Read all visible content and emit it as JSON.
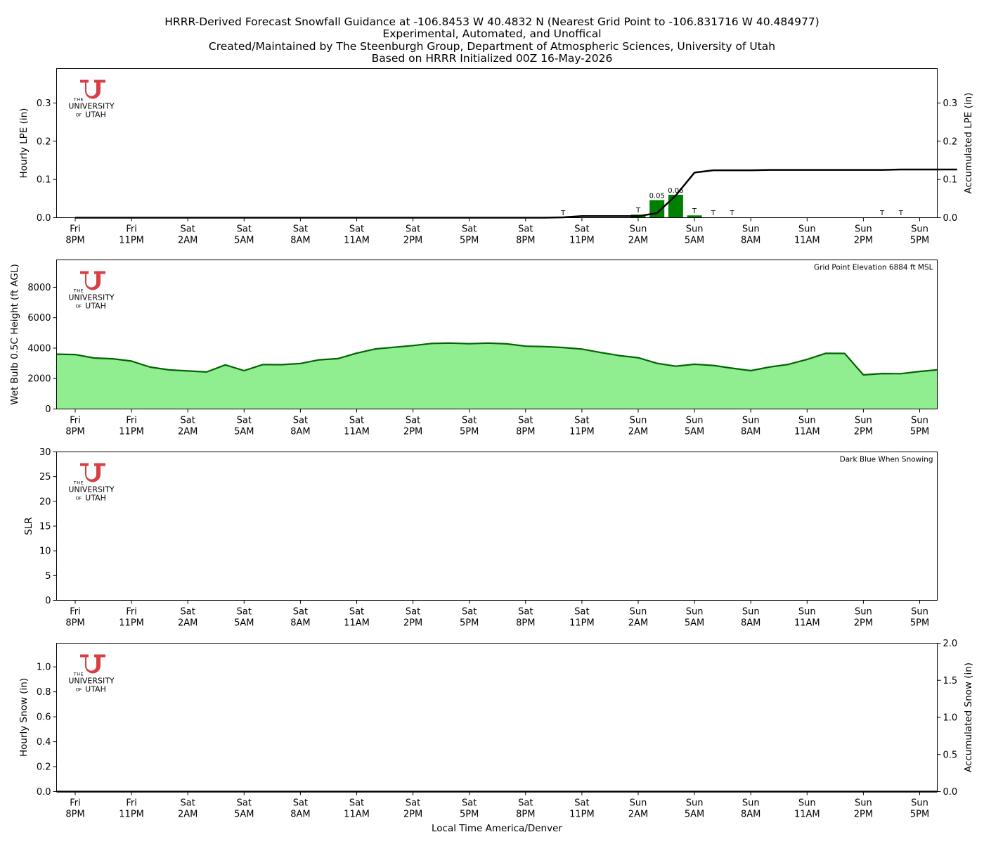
{
  "title_lines": [
    "HRRR-Derived Forecast Snowfall Guidance at -106.8453 W 40.4832 N (Nearest Grid Point to -106.831716 W 40.484977)",
    "Experimental, Automated, and Unoffical",
    "Created/Maintained by The Steenburgh Group, Department of Atmospheric Sciences, University of Utah",
    "Based on HRRR Initialized 00Z 16-May-2026"
  ],
  "x_axis": {
    "label": "Local Time America/Denver",
    "tick_days": [
      "Fri",
      "Fri",
      "Sat",
      "Sat",
      "Sat",
      "Sat",
      "Sat",
      "Sat",
      "Sat",
      "Sat",
      "Sun",
      "Sun",
      "Sun",
      "Sun",
      "Sun",
      "Sun"
    ],
    "tick_times": [
      "8PM",
      "11PM",
      "2AM",
      "5AM",
      "8AM",
      "11AM",
      "2PM",
      "5PM",
      "8PM",
      "11PM",
      "2AM",
      "5AM",
      "8AM",
      "11AM",
      "2PM",
      "5PM"
    ]
  },
  "logo": {
    "the": "THE",
    "university": "UNIVERSITY",
    "of": "OF",
    "utah": "UTAH",
    "color": "#d64045"
  },
  "colors": {
    "bar": "#008000",
    "line": "#000000",
    "area_fill": "#90ee90",
    "area_line": "#006400"
  },
  "chart_data": [
    {
      "type": "bar",
      "ylabel": "Hourly LPE (in)",
      "ylabel_right": "Accumulated LPE (in)",
      "ylim": [
        0,
        0.39
      ],
      "yticks": [
        "0.0",
        "0.1",
        "0.2",
        "0.3"
      ],
      "ylim_right": [
        0,
        0.39
      ],
      "yticks_right": [
        "0.0",
        "0.1",
        "0.2",
        "0.3"
      ],
      "x_hours_from_start": [
        26,
        30,
        31,
        32,
        33,
        34,
        35,
        43,
        44
      ],
      "hourly_lpe": [
        0.001,
        0.008,
        0.046,
        0.06,
        0.006,
        0.001,
        0.001,
        0.001,
        0.001
      ],
      "bar_labels": [
        "T",
        "T",
        "0.05",
        "0.06",
        "T",
        "T",
        "T",
        "T",
        "T"
      ],
      "accumulated_lpe": [
        [
          0,
          0
        ],
        [
          25,
          0
        ],
        [
          26,
          0.001
        ],
        [
          27,
          0.004
        ],
        [
          30,
          0.004
        ],
        [
          31,
          0.012
        ],
        [
          32,
          0.058
        ],
        [
          33,
          0.118
        ],
        [
          34,
          0.124
        ],
        [
          36,
          0.124
        ],
        [
          37,
          0.125
        ],
        [
          43,
          0.125
        ],
        [
          44,
          0.126
        ],
        [
          47,
          0.126
        ]
      ]
    },
    {
      "type": "area",
      "ylabel": "Wet Bulb 0.5C Height (ft AGL)",
      "annotation": "Grid Point Elevation 6884 ft MSL",
      "ylim": [
        0,
        9800
      ],
      "yticks": [
        "0",
        "2000",
        "4000",
        "6000",
        "8000"
      ],
      "values": [
        3600,
        3580,
        3350,
        3300,
        3150,
        2750,
        2570,
        2500,
        2430,
        2900,
        2520,
        2920,
        2910,
        2990,
        3230,
        3310,
        3670,
        3950,
        4060,
        4170,
        4310,
        4330,
        4290,
        4330,
        4280,
        4130,
        4100,
        4040,
        3940,
        3710,
        3510,
        3370,
        3000,
        2810,
        2940,
        2860,
        2680,
        2520,
        2760,
        2930,
        3260,
        3660,
        3650,
        2240,
        2330,
        2320,
        2470,
        2570
      ]
    },
    {
      "type": "line",
      "ylabel": "SLR",
      "annotation": "Dark Blue When Snowing",
      "ylim": [
        0,
        30
      ],
      "yticks": [
        "0",
        "5",
        "10",
        "15",
        "20",
        "25",
        "30"
      ],
      "values": []
    },
    {
      "type": "bar",
      "ylabel": "Hourly Snow (in)",
      "ylabel_right": "Accumulated Snow (in)",
      "ylim": [
        0,
        1.19
      ],
      "yticks": [
        "0.0",
        "0.2",
        "0.4",
        "0.6",
        "0.8",
        "1.0"
      ],
      "ylim_right": [
        0,
        2.0
      ],
      "yticks_right": [
        "0.0",
        "0.5",
        "1.0",
        "1.5",
        "2.0"
      ],
      "hourly_snow": [],
      "accumulated_snow": [
        [
          0,
          0
        ],
        [
          47,
          0
        ]
      ]
    }
  ]
}
